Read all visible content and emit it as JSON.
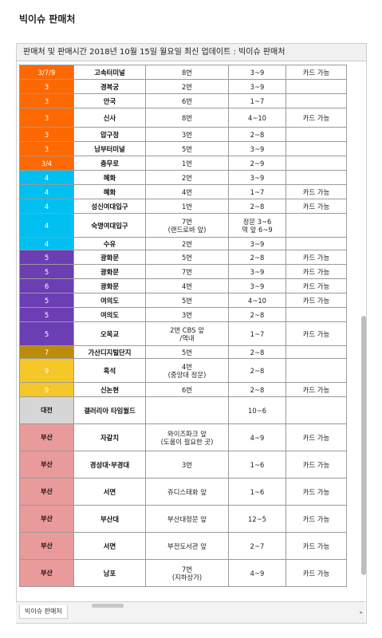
{
  "app": {
    "title": "빅이슈 판매처"
  },
  "sheet": {
    "header": "판매처 및 판매시간 2018년 10월 15일 월요일 최신 업데이트 : 빅이슈 판매처",
    "tab_label": "빅이슈 판매처",
    "colors": {
      "orange": "#fe6800",
      "cyan": "#00bff1",
      "purple": "#6c3eb4",
      "olive": "#bb8c0a",
      "yellow": "#f6c728",
      "gray": "#d6d6d6",
      "pink": "#e99a9a"
    },
    "rows": [
      {
        "line": "3/7/9",
        "station": "고속터미널",
        "exit": "8번",
        "time": "3~9",
        "note": "카드 가능",
        "color": "#fe6800",
        "h": 18
      },
      {
        "line": "3",
        "station": "경복궁",
        "exit": "2번",
        "time": "3~9",
        "note": "",
        "color": "#fe6800",
        "h": 18
      },
      {
        "line": "3",
        "station": "안국",
        "exit": "6번",
        "time": "1~7",
        "note": "",
        "color": "#fe6800",
        "h": 18
      },
      {
        "line": "3",
        "station": "신사",
        "exit": "8번",
        "time": "4~10",
        "note": "카드 가능",
        "color": "#fe6800",
        "h": 24
      },
      {
        "line": "3",
        "station": "압구정",
        "exit": "3번",
        "time": "2~8",
        "note": "",
        "color": "#fe6800",
        "h": 18
      },
      {
        "line": "3",
        "station": "남부터미널",
        "exit": "5번",
        "time": "3~9",
        "note": "",
        "color": "#fe6800",
        "h": 18
      },
      {
        "line": "3/4",
        "station": "충무로",
        "exit": "1번",
        "time": "2~9",
        "note": "",
        "color": "#fe6800",
        "h": 18
      },
      {
        "line": "4",
        "station": "혜화",
        "exit": "2번",
        "time": "3~9",
        "note": "",
        "color": "#00bff1",
        "h": 18
      },
      {
        "line": "4",
        "station": "혜화",
        "exit": "4번",
        "time": "1~7",
        "note": "카드 가능",
        "color": "#00bff1",
        "h": 18
      },
      {
        "line": "4",
        "station": "성신여대입구",
        "exit": "1번",
        "time": "2~8",
        "note": "카드 가능",
        "color": "#00bff1",
        "h": 18
      },
      {
        "line": "4",
        "station": "숙명여대입구",
        "exit": "7번\n(랜드로바 앞)",
        "time": "정문 3~6\n역 앞 6~9",
        "note": "",
        "color": "#00bff1",
        "h": 30
      },
      {
        "line": "4",
        "station": "수유",
        "exit": "2번",
        "time": "3~9",
        "note": "",
        "color": "#00bff1",
        "h": 16
      },
      {
        "line": "5",
        "station": "광화문",
        "exit": "5번",
        "time": "2~8",
        "note": "카드 가능",
        "color": "#6c3eb4",
        "h": 18
      },
      {
        "line": "5",
        "station": "광화문",
        "exit": "7번",
        "time": "3~9",
        "note": "카드 가능",
        "color": "#6c3eb4",
        "h": 18
      },
      {
        "line": "6",
        "station": "광화문",
        "exit": "4번",
        "time": "3~9",
        "note": "카드 가능",
        "color": "#6c3eb4",
        "h": 18
      },
      {
        "line": "5",
        "station": "여의도",
        "exit": "5번",
        "time": "4~10",
        "note": "카드 가능",
        "color": "#6c3eb4",
        "h": 18
      },
      {
        "line": "5",
        "station": "여의도",
        "exit": "3번",
        "time": "2~8",
        "note": "",
        "color": "#6c3eb4",
        "h": 18
      },
      {
        "line": "5",
        "station": "오목교",
        "exit": "2번 CBS 앞\n/역내",
        "time": "1~7",
        "note": "카드 가능",
        "color": "#6c3eb4",
        "h": 30
      },
      {
        "line": "7",
        "station": "가산디지털단지",
        "exit": "5번",
        "time": "2~8",
        "note": "",
        "color": "#bb8c0a",
        "h": 16
      },
      {
        "line": "9",
        "station": "흑석",
        "exit": "4번\n(중앙대 정문)",
        "time": "2~8",
        "note": "",
        "color": "#f6c728",
        "h": 30
      },
      {
        "line": "9",
        "station": "신논현",
        "exit": "6번",
        "time": "2~8",
        "note": "카드 가능",
        "color": "#f6c728",
        "h": 18
      },
      {
        "line": "대전",
        "station": "갤러리아 타임월드",
        "exit": "",
        "time": "10~6",
        "note": "",
        "color": "#d6d6d6",
        "h": 34
      },
      {
        "line": "부산",
        "station": "자갈치",
        "exit": "와이즈파크 앞\n(도움이 필요한 곳)",
        "time": "4~9",
        "note": "카드 가능",
        "color": "#e99a9a",
        "h": 34
      },
      {
        "line": "부산",
        "station": "경성대·부경대",
        "exit": "3번",
        "time": "1~6",
        "note": "카드 가능",
        "color": "#e99a9a",
        "h": 34
      },
      {
        "line": "부산",
        "station": "서면",
        "exit": "쥬디스태화 앞",
        "time": "1~6",
        "note": "카드 가능",
        "color": "#e99a9a",
        "h": 34
      },
      {
        "line": "부산",
        "station": "부산대",
        "exit": "부산대정문 앞",
        "time": "12~5",
        "note": "카드 가능",
        "color": "#e99a9a",
        "h": 34
      },
      {
        "line": "부산",
        "station": "서면",
        "exit": "부전도서관 앞",
        "time": "2~7",
        "note": "카드 가능",
        "color": "#e99a9a",
        "h": 34
      },
      {
        "line": "부산",
        "station": "남포",
        "exit": "7번\n(지하상가)",
        "time": "4~9",
        "note": "카드 가능",
        "color": "#e99a9a",
        "h": 34
      }
    ]
  }
}
